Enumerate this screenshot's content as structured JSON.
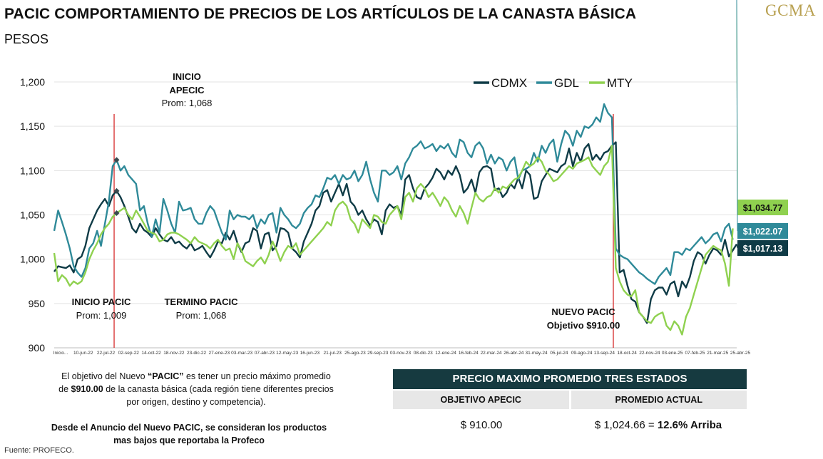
{
  "header": {
    "title": "PACIC COMPORTAMIENTO DE PRECIOS DE LOS ARTÍCULOS DE LA CANASTA BÁSICA",
    "subtitle": "PESOS",
    "logo": "GCMA"
  },
  "colors": {
    "CDMX": "#0f3b46",
    "GDL": "#2f8a99",
    "MTY": "#8fd14f",
    "vline": "#d62b2b"
  },
  "chart_data": {
    "type": "line",
    "ylim": [
      900,
      1200
    ],
    "yticks": [
      "1,200",
      "1,150",
      "1,100",
      "1,050",
      "1,000",
      "950",
      "900"
    ],
    "ytick_values": [
      1200,
      1150,
      1100,
      1050,
      1000,
      950,
      900
    ],
    "xlabels": [
      "Inicio...",
      "10-jun-22",
      "22-jul-22",
      "02-sep-22",
      "14-oct-22",
      "18-nov-22",
      "23-dic-22",
      "27-ene-23",
      "03-mar-23",
      "07-abr-23",
      "12-may-23",
      "16-jun-23",
      "21-jul-23",
      "25-ago-23",
      "29-sep-23",
      "03-nov-23",
      "08-dic-23",
      "12-ene-24",
      "16-feb-24",
      "22-mar-24",
      "26-abr-24",
      "31-may-24",
      "05-jul-24",
      "09-ago-24",
      "13-sep-24",
      "18-oct-24",
      "22-nov-24",
      "03-ene-25",
      "07-feb-25",
      "21-mar-25",
      "25-abr-25"
    ],
    "legend": [
      "CDMX",
      "GDL",
      "MTY"
    ],
    "series": [
      {
        "name": "CDMX",
        "values": [
          986,
          992,
          991,
          990,
          993,
          985,
          1000,
          1003,
          1015,
          1035,
          1045,
          1055,
          1062,
          1068,
          1060,
          1072,
          1077,
          1070,
          1060,
          1048,
          1035,
          1030,
          1040,
          1033,
          1030,
          1025,
          1035,
          1028,
          1022,
          1020,
          1025,
          1018,
          1020,
          1015,
          1012,
          1018,
          1010,
          1012,
          1015,
          1008,
          1002,
          1010,
          1020,
          1018,
          1030,
          1022,
          1032,
          1018,
          1008,
          1018,
          1020,
          1035,
          1032,
          1012,
          1028,
          1030,
          1010,
          1015,
          1035,
          1034,
          1030,
          1012,
          1008,
          1002,
          1020,
          1030,
          1040,
          1055,
          1060,
          1075,
          1078,
          1065,
          1075,
          1085,
          1072,
          1085,
          1065,
          1060,
          1050,
          1055,
          1045,
          1038,
          1045,
          1042,
          1028,
          1055,
          1062,
          1058,
          1060,
          1050,
          1090,
          1095,
          1080,
          1070,
          1068,
          1080,
          1085,
          1092,
          1102,
          1098,
          1090,
          1100,
          1095,
          1105,
          1095,
          1075,
          1080,
          1090,
          1075,
          1098,
          1104,
          1105,
          1102,
          1078,
          1080,
          1070,
          1075,
          1085,
          1080,
          1092,
          1080,
          1100,
          1095,
          1068,
          1070,
          1088,
          1095,
          1102,
          1100,
          1098,
          1105,
          1108,
          1125,
          1105,
          1120,
          1110,
          1125,
          1130,
          1112,
          1118,
          1112,
          1120,
          1122,
          1128,
          1132,
          985,
          988,
          970,
          955,
          952,
          940,
          935,
          928,
          955,
          965,
          968,
          968,
          960,
          972,
          975,
          958,
          975,
          968,
          980,
          998,
          1008,
          1005,
          995,
          1005,
          1012,
          1010,
          1005,
          1022,
          1003,
          1010,
          1017
        ],
        "label": "$1,017.13"
      },
      {
        "name": "GDL",
        "values": [
          1032,
          1055,
          1042,
          1028,
          1012,
          992,
          985,
          980,
          990,
          1012,
          1018,
          1032,
          1015,
          1040,
          1065,
          1105,
          1112,
          1100,
          1105,
          1095,
          1090,
          1085,
          1055,
          1060,
          1040,
          1025,
          1045,
          1030,
          1068,
          1055,
          1040,
          1030,
          1065,
          1055,
          1056,
          1058,
          1045,
          1040,
          1040,
          1052,
          1060,
          1055,
          1042,
          1030,
          1022,
          1055,
          1045,
          1050,
          1048,
          1048,
          1045,
          1050,
          1035,
          1045,
          1040,
          1050,
          1052,
          1030,
          1058,
          1050,
          1045,
          1038,
          1035,
          1040,
          1052,
          1058,
          1062,
          1072,
          1070,
          1080,
          1092,
          1090,
          1095,
          1085,
          1095,
          1090,
          1092,
          1100,
          1088,
          1095,
          1110,
          1090,
          1075,
          1065,
          1100,
          1100,
          1095,
          1098,
          1105,
          1090,
          1108,
          1115,
          1125,
          1128,
          1133,
          1125,
          1127,
          1130,
          1122,
          1128,
          1125,
          1130,
          1120,
          1115,
          1135,
          1132,
          1120,
          1115,
          1128,
          1132,
          1125,
          1108,
          1118,
          1108,
          1115,
          1112,
          1100,
          1110,
          1115,
          1090,
          1100,
          1102,
          1105,
          1120,
          1110,
          1128,
          1120,
          1130,
          1135,
          1110,
          1130,
          1145,
          1140,
          1128,
          1145,
          1138,
          1150,
          1148,
          1152,
          1160,
          1155,
          1175,
          1165,
          1160,
          1012,
          1005,
          1002,
          1000,
          995,
          990,
          985,
          982,
          978,
          975,
          972,
          980,
          985,
          990,
          982,
          1008,
          1008,
          1005,
          1012,
          1010,
          1015,
          1020,
          1025,
          1018,
          1022,
          1028,
          1030,
          1020,
          1035,
          1040,
          1022
        ],
        "label": "$1,022.07"
      },
      {
        "name": "MTY",
        "values": [
          1007,
          975,
          982,
          978,
          970,
          975,
          972,
          975,
          985,
          1000,
          1010,
          1018,
          1028,
          1035,
          1040,
          1048,
          1052,
          1055,
          1058,
          1050,
          1045,
          1055,
          1048,
          1040,
          1032,
          1030,
          1028,
          1020,
          1022,
          1028,
          1030,
          1030,
          1028,
          1025,
          1022,
          1018,
          1025,
          1020,
          1018,
          1016,
          1012,
          1018,
          1022,
          1015,
          1010,
          1012,
          1000,
          1018,
          1010,
          998,
          995,
          992,
          998,
          1002,
          995,
          1005,
          1020,
          1010,
          998,
          1008,
          1015,
          1012,
          1018,
          1005,
          1010,
          1015,
          1020,
          1025,
          1030,
          1035,
          1042,
          1038,
          1055,
          1062,
          1065,
          1060,
          1045,
          1040,
          1030,
          1045,
          1040,
          1035,
          1050,
          1048,
          1042,
          1040,
          1050,
          1055,
          1060,
          1045,
          1070,
          1075,
          1065,
          1080,
          1085,
          1080,
          1070,
          1075,
          1068,
          1060,
          1070,
          1065,
          1055,
          1048,
          1060,
          1052,
          1040,
          1058,
          1075,
          1068,
          1065,
          1070,
          1072,
          1080,
          1075,
          1082,
          1080,
          1085,
          1090,
          1092,
          1100,
          1110,
          1105,
          1108,
          1115,
          1110,
          1100,
          1095,
          1088,
          1090,
          1095,
          1100,
          1105,
          1102,
          1108,
          1110,
          1112,
          1115,
          1105,
          1100,
          1095,
          1105,
          1110,
          1128,
          990,
          975,
          965,
          960,
          958,
          965,
          940,
          935,
          930,
          928,
          935,
          938,
          940,
          925,
          920,
          930,
          925,
          915,
          935,
          945,
          960,
          975,
          990,
          1005,
          1010,
          1015,
          1012,
          1010,
          995,
          970,
          1034.77
        ],
        "label": "$1,034.77"
      }
    ],
    "events": [
      {
        "title": "INICIO PACIC",
        "sub": "Prom: 1,009"
      },
      {
        "title": "INICIO APECIC",
        "sub": "Prom: 1,068"
      },
      {
        "title": "TERMINO PACIC",
        "sub": "Prom: 1,068"
      },
      {
        "title": "NUEVO PACIC",
        "sub": "Objetivo $910.00"
      }
    ]
  },
  "annotations": {
    "inicio_apecic_l1": "INICIO",
    "inicio_apecic_l2": "APECIC",
    "inicio_apecic_prom": "Prom: 1,068",
    "inicio_pacic": "INICIO PACIC",
    "inicio_pacic_prom": "Prom: 1,009",
    "termino_pacic": "TERMINO PACIC",
    "termino_pacic_prom": "Prom: 1,068",
    "nuevo_pacic": "NUEVO PACIC",
    "nuevo_pacic_obj": "Objetivo $910.00"
  },
  "notes": {
    "p1_a": "El objetivo del Nuevo ",
    "p1_b": "“PACIC”",
    "p1_c": " es tener un precio máximo promedio",
    "p1_d": "de ",
    "p1_e": "$910.00",
    "p1_f": " de la canasta básica (cada región tiene diferentes precios",
    "p1_g": "por origen, destino y competencia).",
    "p2_l1": "Desde el Anuncio del Nuevo PACIC, se consideran los productos",
    "p2_l2": "mas bajos que reportaba la Profeco"
  },
  "table": {
    "title": "PRECIO MAXIMO PROMEDIO TRES ESTADOS",
    "col1": "OBJETIVO APECIC",
    "col2": "PROMEDIO ACTUAL",
    "val1": "$ 910.00",
    "val2_a": "$ 1,024.66  =  ",
    "val2_b": "12.6% Arriba"
  },
  "source": "Fuente: PROFECO."
}
